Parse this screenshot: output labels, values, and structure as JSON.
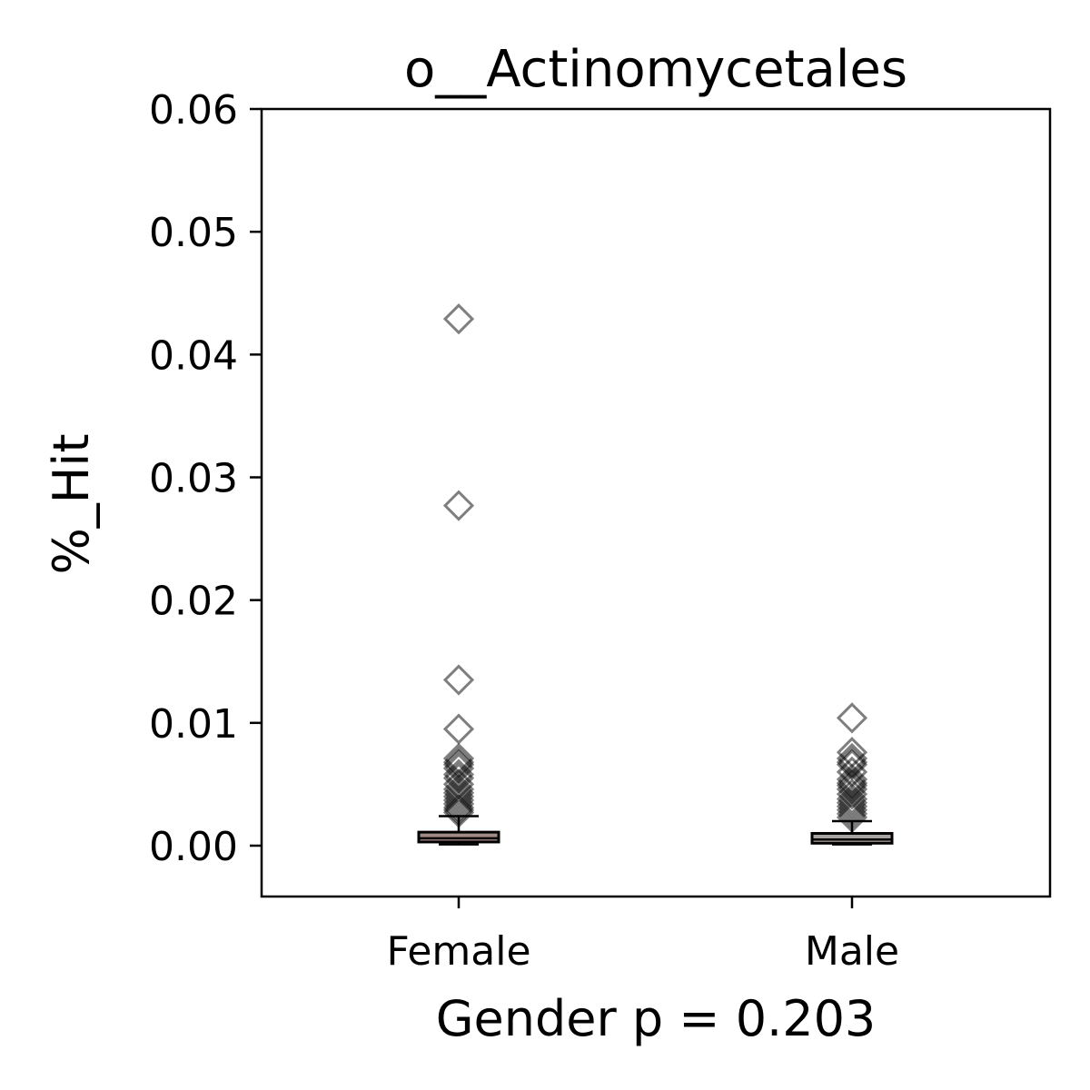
{
  "chart_data": {
    "type": "box",
    "title": "o__Actinomycetales",
    "xlabel": "Gender p = 0.203",
    "ylabel": "%_Hit",
    "ylim": [
      -0.0042,
      0.06
    ],
    "yticks": [
      0.0,
      0.01,
      0.02,
      0.03,
      0.04,
      0.05,
      0.06
    ],
    "ytick_labels": [
      "0.00",
      "0.01",
      "0.02",
      "0.03",
      "0.04",
      "0.05",
      "0.06"
    ],
    "grid": false,
    "categories": [
      "Female",
      "Male"
    ],
    "groups": [
      {
        "name": "Female",
        "box_color": "#a38a82",
        "q1": 0.0003,
        "median": 0.0006,
        "q3": 0.0011,
        "whisker_low": 0.0001,
        "whisker_high": 0.0024,
        "outliers": [
          0.0429,
          0.0277,
          0.0135,
          0.0095,
          0.0071,
          0.0068,
          0.0066,
          0.0063,
          0.0058,
          0.0055,
          0.005,
          0.0046,
          0.0043,
          0.004,
          0.0037,
          0.0034,
          0.0031,
          0.0029,
          0.0027
        ]
      },
      {
        "name": "Male",
        "box_color": "#a9a29e",
        "q1": 0.0002,
        "median": 0.0005,
        "q3": 0.001,
        "whisker_low": 0.0001,
        "whisker_high": 0.002,
        "outliers": [
          0.0104,
          0.0076,
          0.0071,
          0.0068,
          0.0066,
          0.006,
          0.0054,
          0.0051,
          0.0049,
          0.0046,
          0.0042,
          0.0038,
          0.0035,
          0.0032,
          0.0029,
          0.0026,
          0.0023
        ]
      }
    ]
  }
}
